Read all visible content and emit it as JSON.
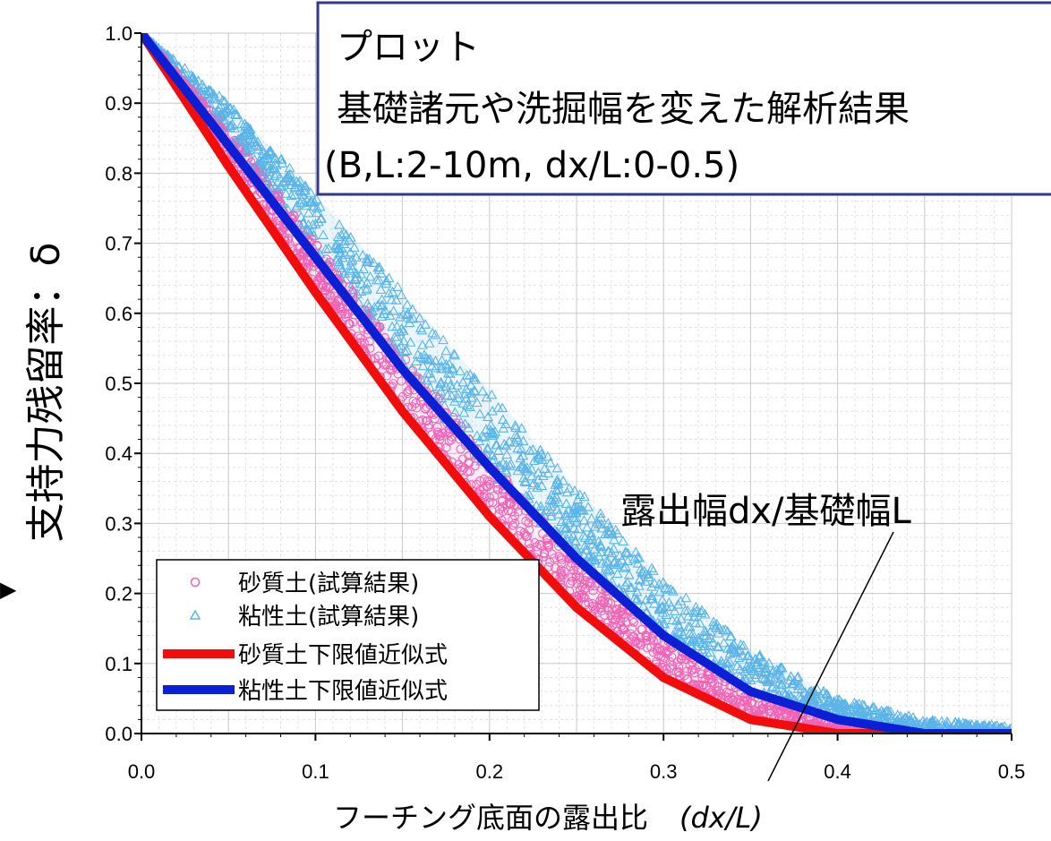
{
  "chart_data": {
    "type": "scatter",
    "xlabel": "フーチング底面の露出比",
    "xlabel_symbol": "(dx/L)",
    "ylabel": "支持力残留率：δ",
    "xlim": [
      0,
      0.5
    ],
    "ylim": [
      0,
      1.0
    ],
    "x_ticks": [
      "0.0",
      "0.1",
      "0.2",
      "0.3",
      "0.4",
      "0.5"
    ],
    "y_ticks": [
      "0.0",
      "0.1",
      "0.2",
      "0.3",
      "0.4",
      "0.5",
      "0.6",
      "0.7",
      "0.8",
      "0.9",
      "1.0"
    ],
    "grid": true,
    "legend_position": "bottom-left",
    "series": [
      {
        "name": "砂質土(試算結果)",
        "kind": "scatter",
        "marker": "circle",
        "color": "#f062b4",
        "band_x": [
          0,
          0.05,
          0.1,
          0.15,
          0.2,
          0.25,
          0.3,
          0.35,
          0.4,
          0.45
        ],
        "band_low": [
          1.0,
          0.81,
          0.63,
          0.46,
          0.31,
          0.18,
          0.08,
          0.02,
          0.0,
          0.0
        ],
        "band_high": [
          1.0,
          0.86,
          0.7,
          0.54,
          0.39,
          0.25,
          0.14,
          0.06,
          0.01,
          0.0
        ]
      },
      {
        "name": "粘性土(試算結果)",
        "kind": "scatter",
        "marker": "triangle",
        "color": "#5ab4e8",
        "band_x": [
          0,
          0.05,
          0.1,
          0.15,
          0.2,
          0.25,
          0.3,
          0.35,
          0.4,
          0.45,
          0.5
        ],
        "band_low": [
          1.0,
          0.85,
          0.68,
          0.52,
          0.37,
          0.25,
          0.14,
          0.06,
          0.02,
          0.0,
          0.0
        ],
        "band_high": [
          1.0,
          0.9,
          0.77,
          0.63,
          0.49,
          0.35,
          0.22,
          0.12,
          0.05,
          0.02,
          0.01
        ]
      },
      {
        "name": "砂質土下限値近似式",
        "kind": "line",
        "color": "#f20d0d",
        "x": [
          0,
          0.05,
          0.1,
          0.15,
          0.2,
          0.25,
          0.3,
          0.35,
          0.4,
          0.45,
          0.5
        ],
        "values": [
          1.0,
          0.81,
          0.63,
          0.46,
          0.31,
          0.18,
          0.08,
          0.02,
          0.0,
          0.0,
          0.0
        ]
      },
      {
        "name": "粘性土下限値近似式",
        "kind": "line",
        "color": "#0b1fd4",
        "x": [
          0,
          0.05,
          0.1,
          0.15,
          0.2,
          0.25,
          0.3,
          0.35,
          0.4,
          0.45,
          0.5
        ],
        "values": [
          1.0,
          0.84,
          0.68,
          0.52,
          0.38,
          0.25,
          0.14,
          0.06,
          0.02,
          0.0,
          0.0
        ]
      }
    ],
    "annotations": {
      "box_lines": [
        "プロット",
        "基礎諸元や洗掘幅を変えた解析結果",
        "(B,L:2-10m, dx/L:0-0.5)"
      ],
      "pointer_label": "露出幅dx/基礎幅L"
    }
  }
}
